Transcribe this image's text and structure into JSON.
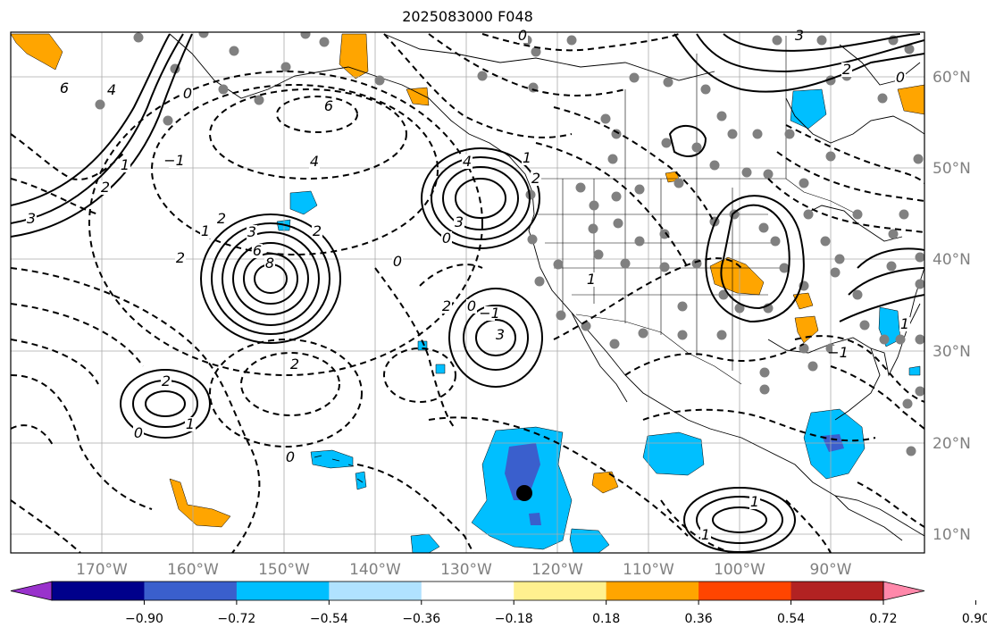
{
  "title": "2025083000 F048",
  "axes": {
    "lon_labels": [
      "170°W",
      "160°W",
      "150°W",
      "140°W",
      "130°W",
      "120°W",
      "110°W",
      "100°W",
      "90°W"
    ],
    "lat_labels": [
      "60°N",
      "50°N",
      "40°N",
      "30°N",
      "20°N",
      "10°N"
    ],
    "label_color": "#808080"
  },
  "colorbar": {
    "colors": [
      "#9932cc",
      "#00008b",
      "#3a5fcd",
      "#00bfff",
      "#b0e2ff",
      "#ffffff",
      "#fff08f",
      "#ffa500",
      "#ff4500",
      "#b22222",
      "#ff88aa"
    ],
    "tick_labels": [
      "−0.90",
      "−0.72",
      "−0.54",
      "−0.36",
      "−0.18",
      "0.18",
      "0.36",
      "0.54",
      "0.72",
      "0.90"
    ]
  },
  "contour_labels": [
    "6",
    "4",
    "0",
    "3",
    "2",
    "1",
    "−1",
    "6",
    "4",
    "2",
    "8",
    "6",
    "3",
    "2",
    "2",
    "1",
    "0",
    "2",
    "1",
    "4",
    "3",
    "0",
    "2",
    "1",
    "3",
    "−1",
    "0",
    "2",
    "1",
    "1",
    "0",
    "2",
    "0",
    "1",
    "0",
    "3",
    "2",
    "0",
    "1",
    "−1"
  ],
  "marker": {
    "label": "storm-center"
  }
}
